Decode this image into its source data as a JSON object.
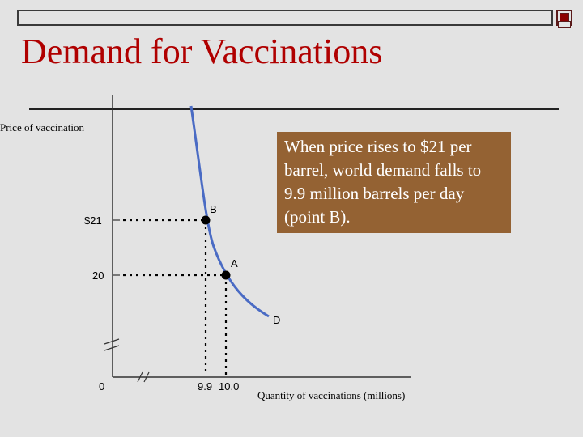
{
  "slide": {
    "title": "Demand for Vaccinations",
    "callout_text": "When price rises to $21 per barrel, world demand falls to 9.9 million barrels per day (point B)."
  },
  "chart_data": {
    "type": "line",
    "xlabel": "Quantity of vaccinations (millions)",
    "ylabel": "Price of vaccination",
    "x_ticks": [
      "0",
      "9.9",
      "10.0"
    ],
    "y_ticks": [
      "$21",
      "20"
    ],
    "series": [
      {
        "name": "D",
        "description": "downward-sloping demand curve"
      }
    ],
    "points": [
      {
        "label": "B",
        "x": 9.9,
        "y": 21
      },
      {
        "label": "A",
        "x": 10.0,
        "y": 20
      }
    ],
    "axis_breaks": {
      "x": true,
      "y": true
    },
    "colors": {
      "curve": "#4a6bc4",
      "point": "#000000",
      "callout_bg": "#946233"
    }
  }
}
